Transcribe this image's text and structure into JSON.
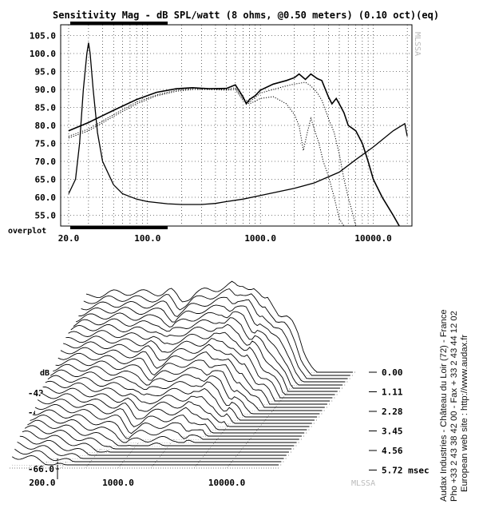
{
  "chart_data": [
    {
      "type": "line",
      "title": "Sensitivity Mag - dB SPL/watt (8 ohms, @0.50 meters) (0.10 oct)(eq)",
      "watermark": "MLSSA",
      "footer_label": "overplot",
      "xscale": "log",
      "xlim": [
        17,
        22000
      ],
      "ylim": [
        52,
        108
      ],
      "x_tick_labels": [
        "20.0",
        "100.0",
        "1000.0",
        "10000.0"
      ],
      "x_ticks": [
        20,
        100,
        1000,
        10000
      ],
      "y_tick_labels": [
        "105.0",
        "100.0",
        "95.0",
        "90.0",
        "85.0",
        "80.0",
        "75.0",
        "70.0",
        "65.0",
        "60.0",
        "55.0"
      ],
      "y_ticks": [
        105,
        100,
        95,
        90,
        85,
        80,
        75,
        70,
        65,
        60,
        55
      ],
      "grid": true,
      "series": [
        {
          "style": "solid-bold",
          "points": [
            [
              20,
              78.5
            ],
            [
              30,
              80.8
            ],
            [
              50,
              84.2
            ],
            [
              80,
              87.2
            ],
            [
              120,
              89.2
            ],
            [
              180,
              90.2
            ],
            [
              250,
              90.5
            ],
            [
              350,
              90.2
            ],
            [
              500,
              90.3
            ],
            [
              600,
              91.3
            ],
            [
              700,
              88
            ],
            [
              750,
              86
            ],
            [
              800,
              87.2
            ],
            [
              900,
              88.3
            ],
            [
              1000,
              89.8
            ],
            [
              1300,
              91.5
            ],
            [
              1700,
              92.5
            ],
            [
              2000,
              93.3
            ],
            [
              2200,
              94.3
            ],
            [
              2500,
              92.8
            ],
            [
              2800,
              94.3
            ],
            [
              3200,
              93
            ],
            [
              3500,
              92.5
            ],
            [
              4000,
              88
            ],
            [
              4300,
              86
            ],
            [
              4700,
              87.5
            ],
            [
              5000,
              86
            ],
            [
              5500,
              83.5
            ],
            [
              6000,
              80
            ],
            [
              7000,
              78.5
            ],
            [
              8000,
              75
            ],
            [
              9000,
              70
            ],
            [
              10000,
              65
            ],
            [
              12000,
              60
            ],
            [
              15000,
              55
            ],
            [
              17000,
              52
            ]
          ]
        },
        {
          "style": "dotted",
          "points": [
            [
              20,
              77
            ],
            [
              30,
              79
            ],
            [
              50,
              83
            ],
            [
              80,
              86.5
            ],
            [
              120,
              88.5
            ],
            [
              180,
              89.8
            ],
            [
              250,
              90.3
            ],
            [
              350,
              90.2
            ],
            [
              500,
              90
            ],
            [
              600,
              90.5
            ],
            [
              700,
              87.5
            ],
            [
              800,
              86.5
            ],
            [
              1000,
              89
            ],
            [
              1300,
              90
            ],
            [
              1700,
              91
            ],
            [
              2000,
              91.5
            ],
            [
              2500,
              92
            ],
            [
              2800,
              91
            ],
            [
              3200,
              89
            ],
            [
              3500,
              87
            ],
            [
              4000,
              82
            ],
            [
              4500,
              78
            ],
            [
              5000,
              72
            ],
            [
              5500,
              65
            ],
            [
              6000,
              60
            ],
            [
              6500,
              56
            ],
            [
              7000,
              52
            ]
          ]
        },
        {
          "style": "dotted",
          "points": [
            [
              20,
              76.5
            ],
            [
              30,
              78.5
            ],
            [
              50,
              82.5
            ],
            [
              80,
              86
            ],
            [
              120,
              88.2
            ],
            [
              180,
              89.5
            ],
            [
              250,
              90
            ],
            [
              350,
              90
            ],
            [
              500,
              89.8
            ],
            [
              600,
              90
            ],
            [
              700,
              87
            ],
            [
              800,
              86
            ],
            [
              1000,
              87.5
            ],
            [
              1300,
              88
            ],
            [
              1700,
              86
            ],
            [
              2000,
              83
            ],
            [
              2200,
              80
            ],
            [
              2400,
              73
            ],
            [
              2600,
              78
            ],
            [
              2800,
              82
            ],
            [
              3000,
              79
            ],
            [
              3300,
              75
            ],
            [
              3600,
              70
            ],
            [
              4000,
              66
            ],
            [
              4500,
              60
            ],
            [
              5000,
              54
            ],
            [
              5500,
              52
            ]
          ]
        },
        {
          "style": "solid",
          "points": [
            [
              20,
              61
            ],
            [
              23,
              65
            ],
            [
              25,
              75
            ],
            [
              27,
              90
            ],
            [
              29,
              100
            ],
            [
              30,
              103
            ],
            [
              31,
              100
            ],
            [
              33,
              90
            ],
            [
              36,
              78
            ],
            [
              40,
              70
            ],
            [
              50,
              63.5
            ],
            [
              60,
              61
            ],
            [
              80,
              59.5
            ],
            [
              100,
              58.8
            ],
            [
              150,
              58.2
            ],
            [
              200,
              58
            ],
            [
              300,
              58
            ],
            [
              400,
              58.3
            ],
            [
              500,
              58.8
            ],
            [
              700,
              59.5
            ],
            [
              1000,
              60.5
            ],
            [
              2000,
              62.5
            ],
            [
              3000,
              64
            ],
            [
              5000,
              67
            ],
            [
              7000,
              70.5
            ],
            [
              10000,
              74
            ],
            [
              15000,
              78.5
            ],
            [
              19000,
              80.5
            ],
            [
              20000,
              77
            ]
          ]
        }
      ]
    },
    {
      "type": "waterfall",
      "xscale": "log",
      "xlim": [
        100,
        30000
      ],
      "ylabel": "dB",
      "x_tick_labels": [
        "200.0",
        "1000.0",
        "10000.0"
      ],
      "x_ticks": [
        200,
        1000,
        10000
      ],
      "y_tick_labels": [
        "-42.0",
        "-48.0",
        "-54.0",
        "-60.0",
        "-66.0"
      ],
      "y_ticks": [
        -42,
        -48,
        -54,
        -60,
        -66
      ],
      "time_labels": [
        "0.00",
        "1.11",
        "2.28",
        "3.45",
        "4.56",
        "5.72 msec"
      ],
      "watermark": "MLSSA",
      "slices": 30
    }
  ],
  "side_text": {
    "line1": "Audax Industries - Château du Loir (72) - France",
    "line2": "Pho +33 2 43 38 42 00 - Fax + 33 2 43 44 12 02",
    "line3": "European web site : http://www.audax.fr"
  }
}
